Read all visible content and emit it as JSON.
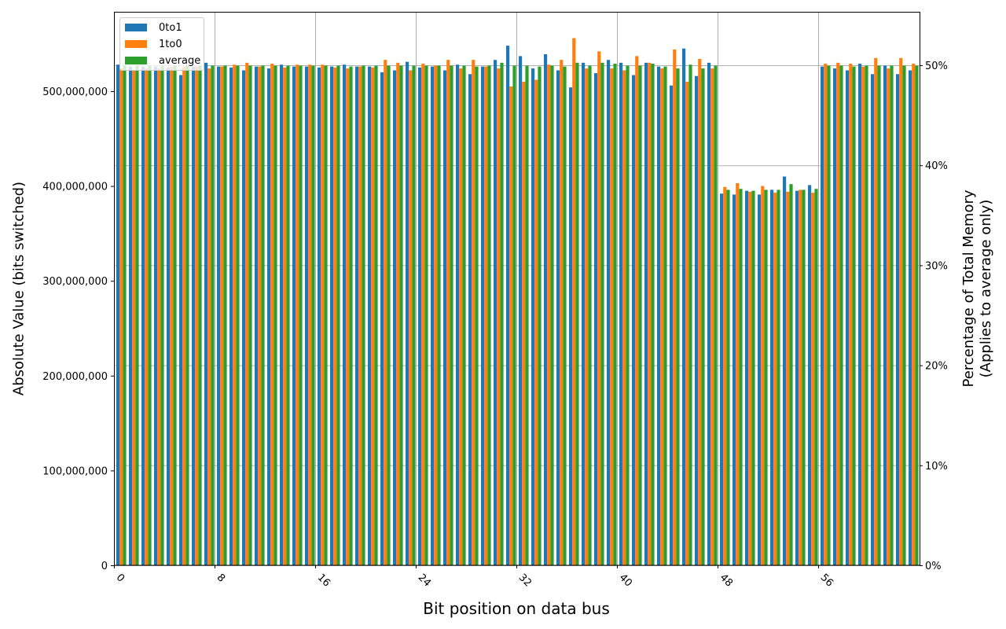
{
  "chart_data": {
    "type": "bar",
    "title": "",
    "xlabel": "Bit position on data bus",
    "ylabel": "Absolute Value (bits switched)",
    "ylabel_right": [
      "Percentage of Total Memory",
      "(Applies to average only)"
    ],
    "ylim": [
      0,
      585000000
    ],
    "ylim_right_pct": [
      0,
      55.5
    ],
    "grid": true,
    "legend_position": "upper left",
    "x_ticks": [
      0,
      8,
      16,
      24,
      32,
      40,
      48,
      56
    ],
    "x_tick_labels": [
      "0",
      "8",
      "16",
      "24",
      "32",
      "40",
      "48",
      "56"
    ],
    "y_ticks": [
      0,
      100000000,
      200000000,
      300000000,
      400000000,
      500000000
    ],
    "y_tick_labels": [
      "0",
      "100,000,000",
      "200,000,000",
      "300,000,000",
      "400,000,000",
      "500,000,000"
    ],
    "y_right_ticks": [
      0,
      10,
      20,
      30,
      40,
      50
    ],
    "y_right_tick_labels": [
      "0%",
      "10%",
      "20%",
      "30%",
      "40%",
      "50%"
    ],
    "categories": [
      0,
      1,
      2,
      3,
      4,
      5,
      6,
      7,
      8,
      9,
      10,
      11,
      12,
      13,
      14,
      15,
      16,
      17,
      18,
      19,
      20,
      21,
      22,
      23,
      24,
      25,
      26,
      27,
      28,
      29,
      30,
      31,
      32,
      33,
      34,
      35,
      36,
      37,
      38,
      39,
      40,
      41,
      42,
      43,
      44,
      45,
      46,
      47,
      48,
      49,
      50,
      51,
      52,
      53,
      54,
      55,
      56,
      57,
      58,
      59,
      60,
      61,
      62,
      63
    ],
    "series": [
      {
        "name": "0to1",
        "color": "#1f77b4",
        "values": [
          528000000,
          526000000,
          526000000,
          526000000,
          525000000,
          517000000,
          526000000,
          530000000,
          526000000,
          525000000,
          522000000,
          526000000,
          524000000,
          528000000,
          526000000,
          526000000,
          525000000,
          526000000,
          528000000,
          526000000,
          526000000,
          520000000,
          522000000,
          531000000,
          525000000,
          526000000,
          522000000,
          528000000,
          518000000,
          526000000,
          533000000,
          548000000,
          537000000,
          524000000,
          539000000,
          522000000,
          504000000,
          530000000,
          519000000,
          533000000,
          530000000,
          517000000,
          530000000,
          526000000,
          506000000,
          545000000,
          516000000,
          530000000,
          392000000,
          391000000,
          395000000,
          391000000,
          396000000,
          410000000,
          395000000,
          401000000,
          526000000,
          524000000,
          522000000,
          529000000,
          518000000,
          527000000,
          518000000,
          522000000
        ]
      },
      {
        "name": "1to0",
        "color": "#ff7f0e",
        "values": [
          524000000,
          522000000,
          524000000,
          524000000,
          526000000,
          526000000,
          526000000,
          524000000,
          526000000,
          528000000,
          530000000,
          526000000,
          529000000,
          525000000,
          528000000,
          528000000,
          528000000,
          525000000,
          524000000,
          526000000,
          525000000,
          533000000,
          530000000,
          522000000,
          529000000,
          527000000,
          533000000,
          524000000,
          533000000,
          526000000,
          524000000,
          505000000,
          510000000,
          512000000,
          528000000,
          533000000,
          556000000,
          524000000,
          542000000,
          524000000,
          522000000,
          537000000,
          530000000,
          524000000,
          544000000,
          510000000,
          534000000,
          524000000,
          399000000,
          403000000,
          394000000,
          400000000,
          393000000,
          394000000,
          396000000,
          393000000,
          529000000,
          530000000,
          529000000,
          526000000,
          535000000,
          524000000,
          535000000,
          529000000
        ]
      },
      {
        "name": "average",
        "color": "#2ca02c",
        "values": [
          527000000,
          527000000,
          527000000,
          527000000,
          527000000,
          527000000,
          527000000,
          527000000,
          527000000,
          527000000,
          527000000,
          527000000,
          527000000,
          527000000,
          527000000,
          527000000,
          527000000,
          527000000,
          526000000,
          527000000,
          527000000,
          527000000,
          527000000,
          527000000,
          527000000,
          527000000,
          527000000,
          527000000,
          526000000,
          527000000,
          530000000,
          527000000,
          527000000,
          526000000,
          527000000,
          526000000,
          530000000,
          527000000,
          530000000,
          529000000,
          527000000,
          527000000,
          529000000,
          526000000,
          524000000,
          528000000,
          524000000,
          527000000,
          396000000,
          397000000,
          395000000,
          396000000,
          396000000,
          402000000,
          396000000,
          397000000,
          527000000,
          527000000,
          526000000,
          527000000,
          527000000,
          527000000,
          527000000,
          527000000
        ]
      }
    ]
  },
  "legend": {
    "items": [
      {
        "label": "0to1",
        "color": "#1f77b4"
      },
      {
        "label": "1to0",
        "color": "#ff7f0e"
      },
      {
        "label": "average",
        "color": "#2ca02c"
      }
    ]
  },
  "labels": {
    "xlabel": "Bit position on data bus",
    "ylabel_left": "Absolute Value (bits switched)",
    "ylabel_right_line1": "Percentage of Total Memory",
    "ylabel_right_line2": "(Applies to average only)"
  }
}
